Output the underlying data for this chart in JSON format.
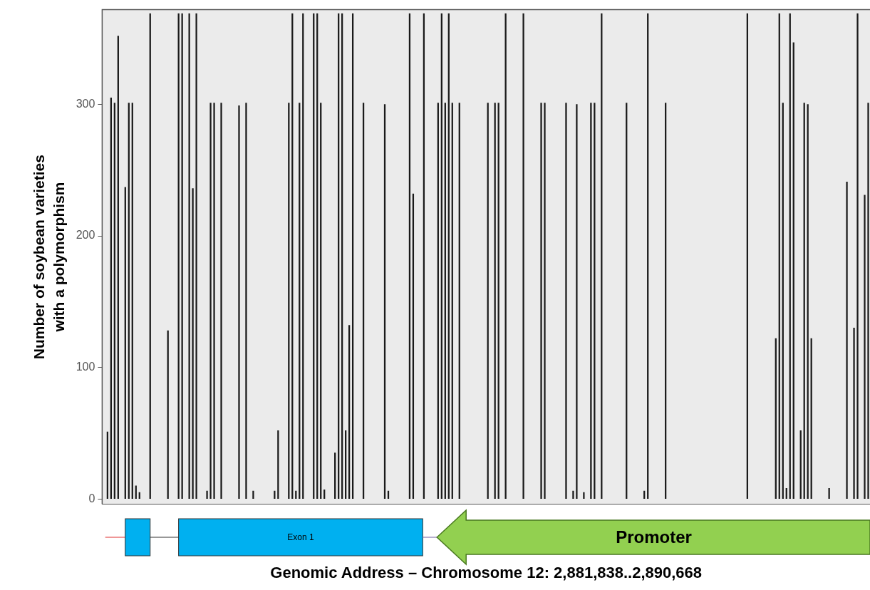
{
  "chart_data": {
    "type": "bar",
    "ylabel": "Number of soybean varieties with a polymorphism",
    "xlabel": "Genomic Address – Chromosome 12: 2,881,838..2,890,668",
    "annotations": [
      "Exon 1",
      "Promoter"
    ],
    "categories": [
      null,
      null,
      null,
      null,
      null,
      null,
      null,
      null,
      null,
      null,
      null,
      null,
      null,
      null,
      null,
      null,
      null,
      null,
      null,
      null,
      null,
      null,
      null,
      null,
      null,
      null,
      null,
      null,
      null,
      null,
      null,
      null,
      null,
      null,
      null,
      null,
      null,
      null,
      null,
      null,
      null,
      null,
      null,
      null,
      null,
      null,
      null,
      null,
      null,
      null,
      null,
      null,
      null,
      null,
      null,
      null,
      null,
      null,
      null,
      null,
      null,
      null,
      null,
      null,
      null,
      null,
      null,
      null,
      null,
      null,
      null,
      null,
      null,
      null,
      null,
      null,
      null,
      null,
      null,
      null,
      null,
      null,
      null,
      null,
      null,
      null,
      null,
      null,
      null,
      null,
      null,
      null,
      null,
      null,
      null,
      null,
      null,
      null,
      null,
      null,
      null,
      null,
      null,
      null,
      null,
      null,
      null,
      null,
      null,
      null,
      null,
      null,
      null,
      null,
      null,
      null,
      null,
      null,
      null,
      null,
      null,
      null,
      null,
      null,
      null,
      null,
      null,
      null,
      null,
      null,
      null,
      null,
      null,
      null,
      null,
      null,
      null,
      null,
      null,
      null,
      null,
      null,
      null,
      null,
      null,
      null,
      null,
      null,
      null,
      null,
      null,
      null,
      null,
      null,
      null,
      null,
      null,
      null,
      null,
      null,
      null,
      null,
      null,
      null,
      null,
      null,
      null,
      null,
      null,
      null,
      null,
      null,
      null,
      null,
      null,
      null,
      null,
      null,
      null,
      null,
      null,
      null,
      null,
      null,
      null,
      null,
      null,
      null,
      null,
      null,
      null,
      null,
      null,
      null,
      null,
      null,
      null,
      null,
      null,
      null,
      null,
      null,
      null,
      null,
      null,
      null,
      null,
      null,
      null,
      null,
      null,
      null,
      null,
      null,
      null,
      null
    ],
    "values": [
      null,
      51,
      305,
      301,
      352,
      null,
      237,
      301,
      301,
      10,
      5,
      null,
      null,
      369,
      null,
      null,
      null,
      null,
      128,
      null,
      null,
      369,
      369,
      null,
      369,
      236,
      369,
      null,
      null,
      6,
      301,
      301,
      null,
      301,
      null,
      null,
      null,
      null,
      299,
      null,
      301,
      null,
      6,
      null,
      null,
      null,
      null,
      null,
      6,
      52,
      null,
      null,
      301,
      369,
      6,
      301,
      369,
      null,
      null,
      369,
      369,
      301,
      7,
      null,
      null,
      35,
      369,
      369,
      52,
      132,
      369,
      null,
      null,
      301,
      null,
      null,
      null,
      null,
      null,
      300,
      6,
      null,
      null,
      null,
      null,
      null,
      369,
      232,
      null,
      null,
      369,
      null,
      null,
      null,
      301,
      369,
      301,
      369,
      301,
      null,
      301,
      null,
      null,
      null,
      null,
      null,
      null,
      null,
      301,
      null,
      301,
      301,
      null,
      369,
      null,
      null,
      null,
      null,
      369,
      null,
      null,
      null,
      null,
      301,
      301,
      null,
      null,
      null,
      null,
      null,
      301,
      null,
      6,
      300,
      null,
      5,
      null,
      301,
      301,
      null,
      369,
      null,
      null,
      null,
      null,
      null,
      null,
      301,
      null,
      null,
      null,
      null,
      6,
      369,
      null,
      null,
      null,
      null,
      301,
      null,
      null,
      null,
      null,
      null,
      null,
      null,
      null,
      null,
      null,
      null,
      null,
      null,
      null,
      null,
      null,
      null,
      null,
      null,
      null,
      null,
      null,
      369,
      null,
      null,
      null,
      null,
      null,
      null,
      null,
      122,
      369,
      301,
      8,
      369,
      347,
      null,
      52,
      301,
      300,
      122,
      null,
      null,
      null,
      null,
      8,
      null,
      null,
      null,
      null,
      241,
      null,
      130,
      369,
      null,
      231,
      301
    ],
    "color": "#1a1a1a",
    "ylim": [
      -4,
      372
    ],
    "yticks": [
      0,
      100,
      200,
      300
    ],
    "grid": false,
    "tick_labels": "y"
  }
}
